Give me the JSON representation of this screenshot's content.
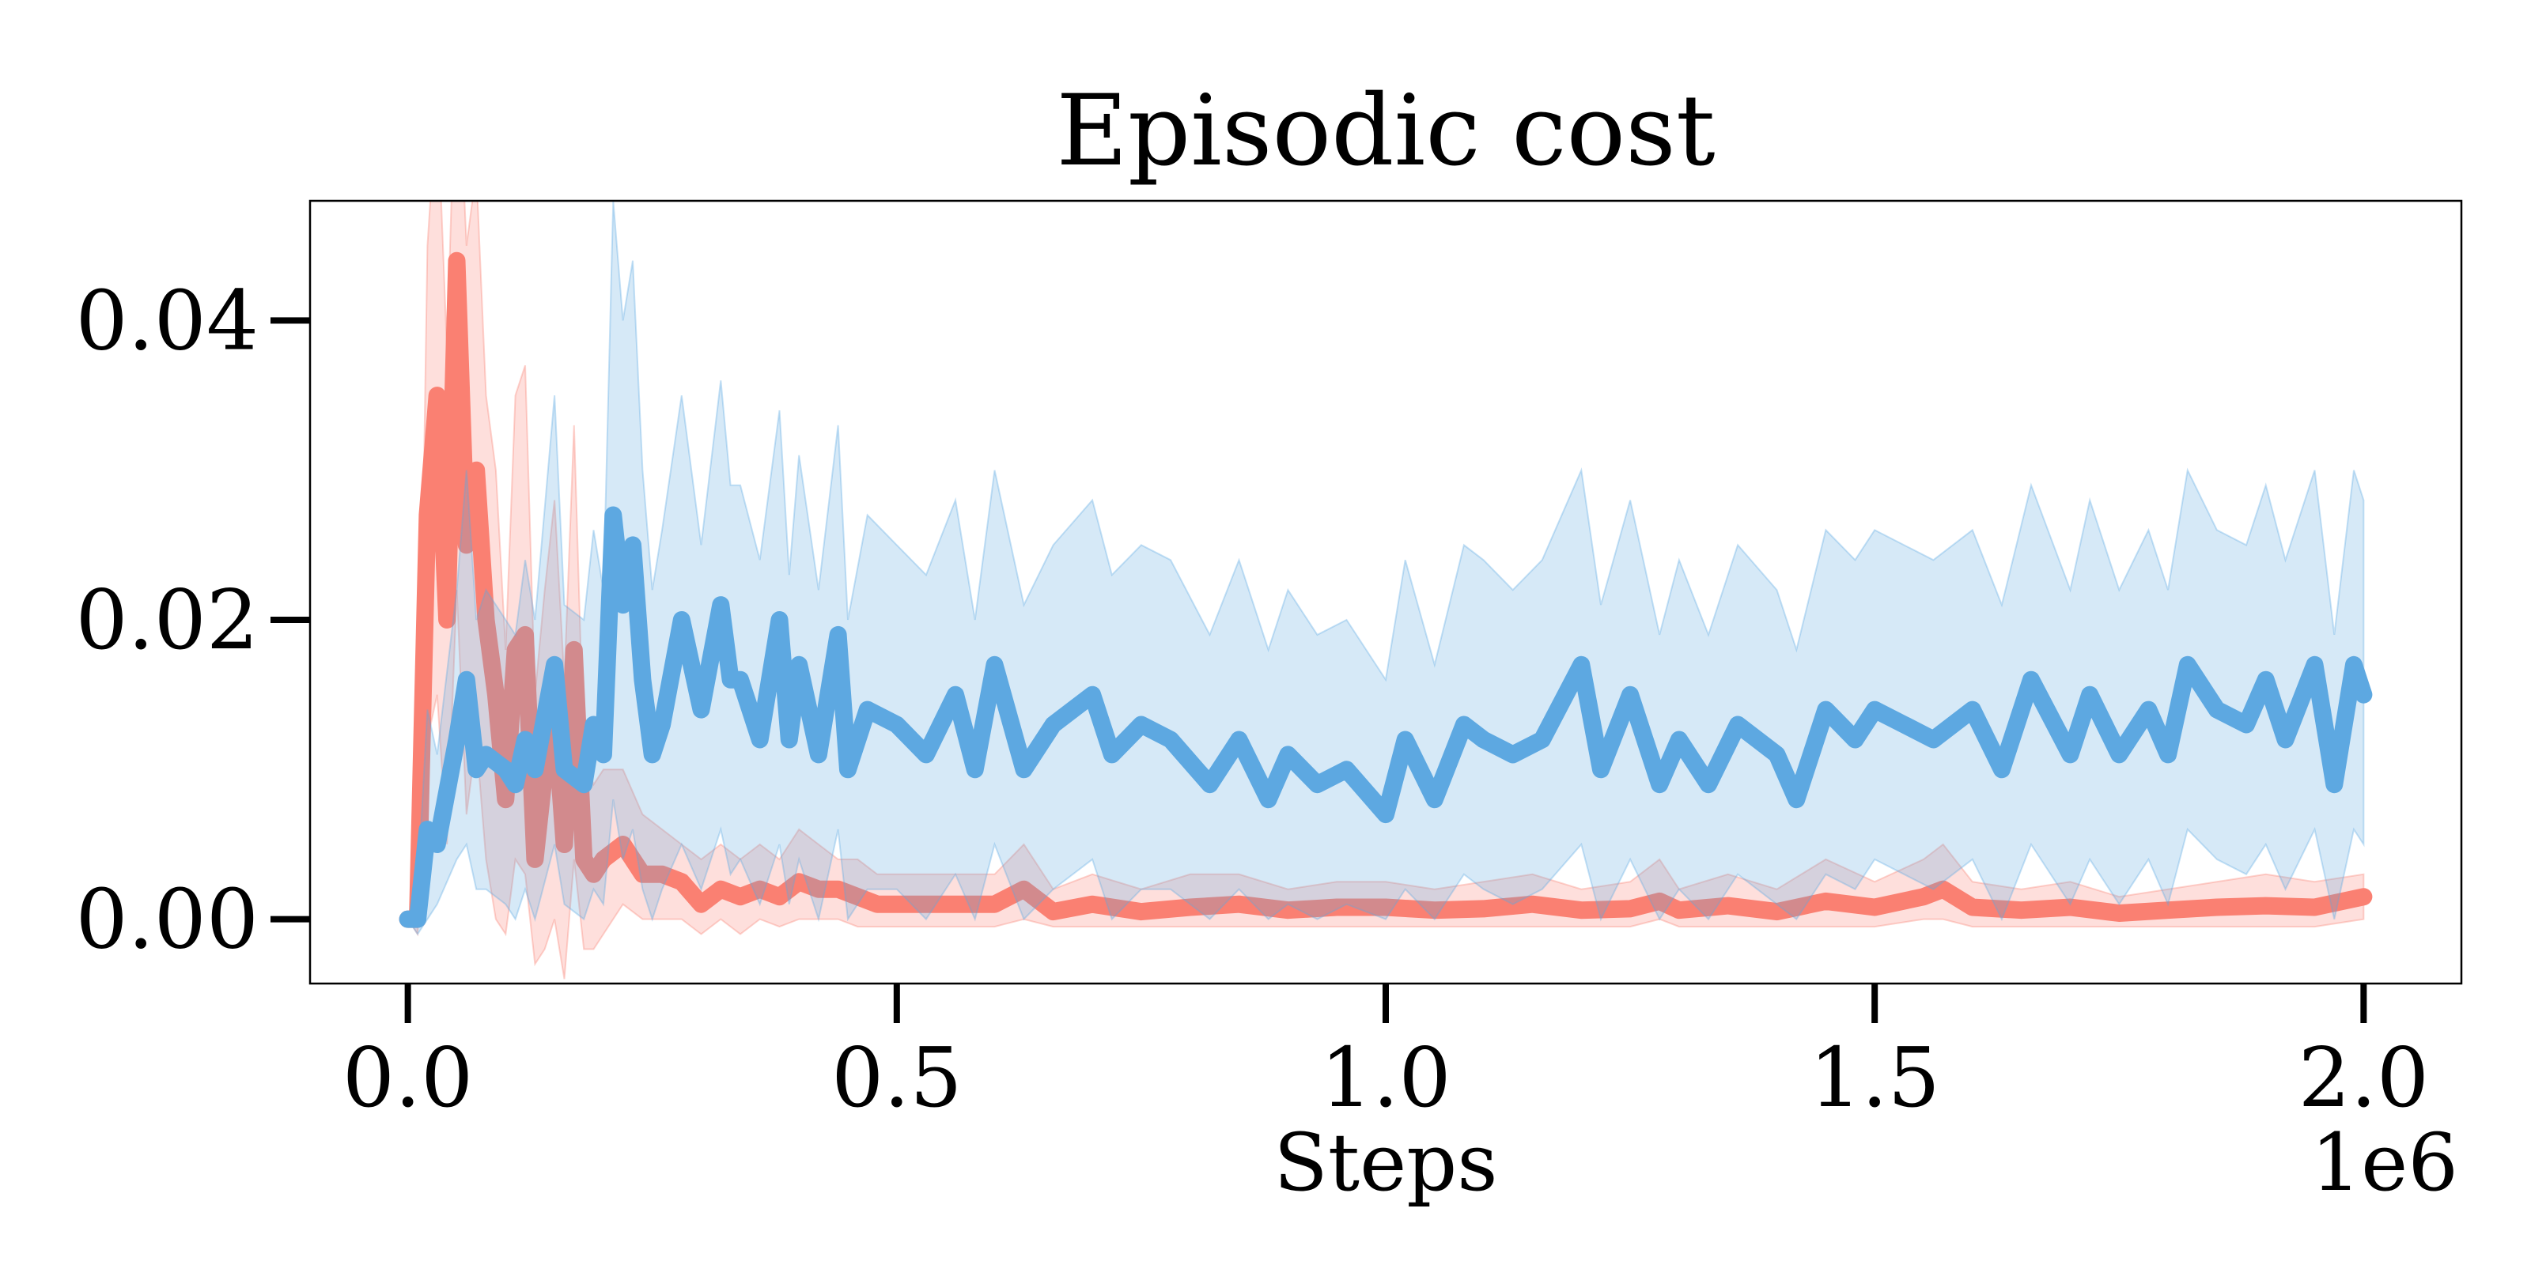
{
  "chart_data": {
    "type": "line",
    "title": "Episodic cost",
    "xlabel": "Steps",
    "ylabel": "",
    "x_scale_label": "1e6",
    "xlim": [
      -0.1,
      2.1
    ],
    "ylim": [
      -0.0043,
      0.048
    ],
    "xticks": [
      0.0,
      0.5,
      1.0,
      1.5,
      2.0
    ],
    "xtick_labels": [
      "0.0",
      "0.5",
      "1.0",
      "1.5",
      "2.0"
    ],
    "yticks": [
      0.0,
      0.02,
      0.04
    ],
    "ytick_labels": [
      "0.00",
      "0.02",
      "0.04"
    ],
    "grid": false,
    "legend": "none",
    "series": [
      {
        "color": "#FA8072",
        "band_color": "#FA8072",
        "x": [
          0.0,
          0.01,
          0.02,
          0.03,
          0.04,
          0.05,
          0.06,
          0.07,
          0.08,
          0.09,
          0.1,
          0.11,
          0.12,
          0.13,
          0.14,
          0.15,
          0.16,
          0.17,
          0.18,
          0.19,
          0.2,
          0.22,
          0.24,
          0.26,
          0.28,
          0.3,
          0.32,
          0.34,
          0.36,
          0.38,
          0.4,
          0.42,
          0.44,
          0.46,
          0.48,
          0.5,
          0.55,
          0.6,
          0.63,
          0.66,
          0.7,
          0.75,
          0.8,
          0.85,
          0.9,
          0.95,
          1.0,
          1.05,
          1.1,
          1.15,
          1.2,
          1.25,
          1.28,
          1.3,
          1.35,
          1.4,
          1.45,
          1.5,
          1.55,
          1.57,
          1.6,
          1.65,
          1.7,
          1.75,
          1.8,
          1.85,
          1.9,
          1.95,
          2.0
        ],
        "mean": [
          0.0,
          0.0,
          0.027,
          0.035,
          0.02,
          0.044,
          0.025,
          0.03,
          0.02,
          0.015,
          0.008,
          0.018,
          0.019,
          0.004,
          0.01,
          0.014,
          0.005,
          0.018,
          0.004,
          0.003,
          0.004,
          0.005,
          0.003,
          0.003,
          0.0025,
          0.001,
          0.002,
          0.0015,
          0.002,
          0.0015,
          0.0025,
          0.002,
          0.002,
          0.0015,
          0.001,
          0.001,
          0.001,
          0.001,
          0.002,
          0.0005,
          0.001,
          0.0005,
          0.0008,
          0.001,
          0.0006,
          0.0008,
          0.0008,
          0.0006,
          0.0007,
          0.001,
          0.0006,
          0.0007,
          0.0012,
          0.0006,
          0.0009,
          0.0005,
          0.0012,
          0.0008,
          0.0015,
          0.002,
          0.0008,
          0.0006,
          0.0008,
          0.0004,
          0.0006,
          0.0008,
          0.0009,
          0.0008,
          0.0015
        ],
        "low": [
          0.0,
          -0.001,
          0.012,
          0.015,
          0.005,
          0.022,
          0.007,
          0.012,
          0.004,
          0.0,
          -0.001,
          0.004,
          0.003,
          -0.003,
          -0.002,
          0.0,
          -0.004,
          0.004,
          -0.002,
          -0.002,
          -0.001,
          0.001,
          0.0,
          0.0,
          0.0,
          -0.001,
          0.0,
          -0.001,
          0.0,
          -0.0005,
          0.0,
          0.0,
          0.0,
          -0.0005,
          -0.0005,
          -0.0005,
          -0.0005,
          -0.0005,
          0.0,
          -0.0005,
          -0.0005,
          -0.0005,
          -0.0005,
          -0.0005,
          -0.0005,
          -0.0005,
          -0.0005,
          -0.0005,
          -0.0005,
          -0.0005,
          -0.0005,
          -0.0005,
          0.0,
          -0.0005,
          -0.0005,
          -0.0005,
          -0.0005,
          -0.0005,
          0.0,
          0.0,
          -0.0005,
          -0.0005,
          -0.0005,
          -0.0005,
          -0.0005,
          -0.0005,
          -0.0005,
          -0.0005,
          0.0
        ],
        "high": [
          0.0,
          0.003,
          0.045,
          0.055,
          0.038,
          0.06,
          0.045,
          0.05,
          0.035,
          0.03,
          0.018,
          0.035,
          0.037,
          0.015,
          0.022,
          0.028,
          0.016,
          0.033,
          0.011,
          0.009,
          0.01,
          0.01,
          0.007,
          0.006,
          0.005,
          0.004,
          0.005,
          0.004,
          0.005,
          0.004,
          0.006,
          0.005,
          0.004,
          0.004,
          0.003,
          0.003,
          0.003,
          0.003,
          0.005,
          0.002,
          0.003,
          0.002,
          0.003,
          0.003,
          0.002,
          0.0025,
          0.0025,
          0.002,
          0.0025,
          0.003,
          0.002,
          0.0025,
          0.004,
          0.002,
          0.003,
          0.002,
          0.004,
          0.0025,
          0.004,
          0.005,
          0.0025,
          0.002,
          0.0025,
          0.0015,
          0.002,
          0.0025,
          0.003,
          0.0025,
          0.003
        ]
      },
      {
        "color": "#5DA8E1",
        "band_color": "#5DA8E1",
        "x": [
          0.0,
          0.01,
          0.02,
          0.03,
          0.05,
          0.06,
          0.07,
          0.08,
          0.1,
          0.11,
          0.12,
          0.13,
          0.15,
          0.16,
          0.18,
          0.19,
          0.2,
          0.21,
          0.22,
          0.23,
          0.24,
          0.25,
          0.26,
          0.28,
          0.3,
          0.32,
          0.33,
          0.34,
          0.36,
          0.38,
          0.39,
          0.4,
          0.42,
          0.44,
          0.45,
          0.47,
          0.5,
          0.53,
          0.56,
          0.58,
          0.6,
          0.63,
          0.66,
          0.7,
          0.72,
          0.75,
          0.78,
          0.82,
          0.85,
          0.88,
          0.9,
          0.93,
          0.96,
          1.0,
          1.02,
          1.05,
          1.08,
          1.1,
          1.13,
          1.16,
          1.2,
          1.22,
          1.25,
          1.28,
          1.3,
          1.33,
          1.36,
          1.4,
          1.42,
          1.45,
          1.48,
          1.5,
          1.53,
          1.56,
          1.6,
          1.63,
          1.66,
          1.7,
          1.72,
          1.75,
          1.78,
          1.8,
          1.82,
          1.85,
          1.88,
          1.9,
          1.92,
          1.95,
          1.97,
          1.99,
          2.0
        ],
        "mean": [
          0.0,
          0.0,
          0.006,
          0.005,
          0.012,
          0.016,
          0.01,
          0.011,
          0.01,
          0.009,
          0.012,
          0.01,
          0.017,
          0.01,
          0.009,
          0.013,
          0.011,
          0.027,
          0.021,
          0.025,
          0.016,
          0.011,
          0.013,
          0.02,
          0.014,
          0.021,
          0.016,
          0.016,
          0.012,
          0.02,
          0.012,
          0.017,
          0.011,
          0.019,
          0.01,
          0.014,
          0.013,
          0.011,
          0.015,
          0.01,
          0.017,
          0.01,
          0.013,
          0.015,
          0.011,
          0.013,
          0.012,
          0.009,
          0.012,
          0.008,
          0.011,
          0.009,
          0.01,
          0.007,
          0.012,
          0.008,
          0.013,
          0.012,
          0.011,
          0.012,
          0.017,
          0.01,
          0.015,
          0.009,
          0.012,
          0.009,
          0.013,
          0.011,
          0.008,
          0.014,
          0.012,
          0.014,
          0.013,
          0.012,
          0.014,
          0.01,
          0.016,
          0.011,
          0.015,
          0.011,
          0.014,
          0.011,
          0.017,
          0.014,
          0.013,
          0.016,
          0.012,
          0.017,
          0.009,
          0.017,
          0.015
        ],
        "low": [
          0.0,
          -0.001,
          0.0,
          0.001,
          0.004,
          0.005,
          0.002,
          0.002,
          0.001,
          0.0,
          0.002,
          0.0,
          0.005,
          0.001,
          0.0,
          0.002,
          0.001,
          0.008,
          0.004,
          0.006,
          0.002,
          0.0,
          0.002,
          0.005,
          0.002,
          0.006,
          0.003,
          0.004,
          0.001,
          0.005,
          0.001,
          0.004,
          0.0,
          0.006,
          0.0,
          0.002,
          0.002,
          0.0,
          0.003,
          0.0,
          0.005,
          0.0,
          0.002,
          0.004,
          0.0,
          0.002,
          0.002,
          0.0,
          0.002,
          0.0,
          0.001,
          0.0,
          0.001,
          0.0,
          0.002,
          0.0,
          0.003,
          0.002,
          0.001,
          0.002,
          0.005,
          0.0,
          0.004,
          0.0,
          0.002,
          0.0,
          0.003,
          0.001,
          0.0,
          0.003,
          0.002,
          0.004,
          0.003,
          0.002,
          0.004,
          0.0,
          0.005,
          0.001,
          0.004,
          0.001,
          0.004,
          0.001,
          0.006,
          0.004,
          0.003,
          0.005,
          0.002,
          0.006,
          0.0,
          0.006,
          0.005
        ],
        "high": [
          0.0,
          0.002,
          0.014,
          0.011,
          0.022,
          0.03,
          0.02,
          0.022,
          0.02,
          0.019,
          0.024,
          0.02,
          0.035,
          0.021,
          0.02,
          0.026,
          0.022,
          0.048,
          0.04,
          0.044,
          0.03,
          0.022,
          0.026,
          0.035,
          0.025,
          0.036,
          0.029,
          0.029,
          0.024,
          0.034,
          0.023,
          0.031,
          0.022,
          0.033,
          0.02,
          0.027,
          0.025,
          0.023,
          0.028,
          0.02,
          0.03,
          0.021,
          0.025,
          0.028,
          0.023,
          0.025,
          0.024,
          0.019,
          0.024,
          0.018,
          0.022,
          0.019,
          0.02,
          0.016,
          0.024,
          0.017,
          0.025,
          0.024,
          0.022,
          0.024,
          0.03,
          0.021,
          0.028,
          0.019,
          0.024,
          0.019,
          0.025,
          0.022,
          0.018,
          0.026,
          0.024,
          0.026,
          0.025,
          0.024,
          0.026,
          0.021,
          0.029,
          0.022,
          0.028,
          0.022,
          0.026,
          0.022,
          0.03,
          0.026,
          0.025,
          0.029,
          0.024,
          0.03,
          0.019,
          0.03,
          0.028
        ]
      }
    ]
  }
}
